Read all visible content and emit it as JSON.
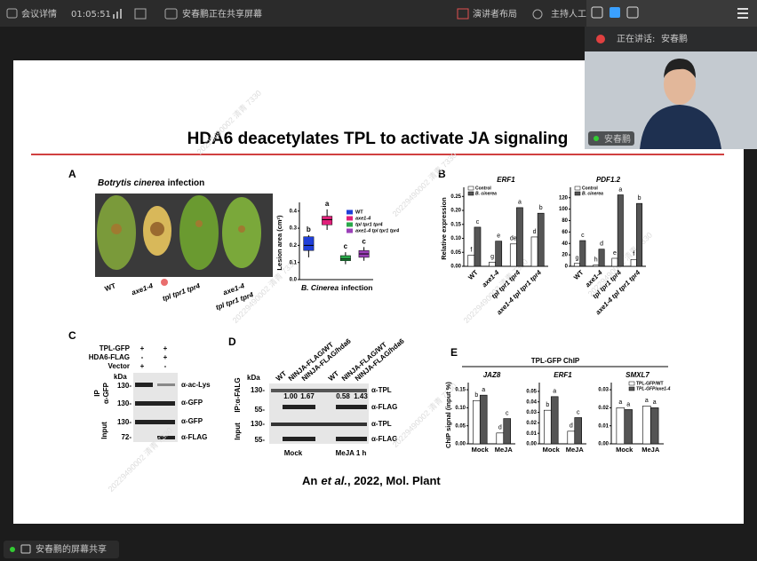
{
  "toolbar": {
    "meeting_info": "会议详情",
    "time": "01:05:51",
    "sharing": "安春鹏正在共享屏幕",
    "layout": "演讲者布局",
    "host": "主持人工"
  },
  "video": {
    "speaking_label": "正在讲话:",
    "speaker": "安春鹏",
    "name_tag": "安春鹏"
  },
  "footer": {
    "share_label": "安春鹏的屏幕共享"
  },
  "slide": {
    "title": "HDA6 deacetylates TPL to activate JA signaling",
    "watermark": "20229490002 清青 7330",
    "citation": [
      "An",
      "et al.",
      ", 2022, Mol. Plant"
    ],
    "A": {
      "label": "A",
      "caption": [
        "Botrytis cinerea",
        "infection"
      ],
      "leaf_labels": [
        "WT",
        "axe1-4",
        "tpl tpr1 tpr4",
        [
          "axe1-4",
          "tpl tpr1 tpr4"
        ]
      ]
    },
    "B": {
      "label": "B"
    },
    "C": {
      "label": "C",
      "rows": [
        "TPL-GFP",
        "HDA6-FLAG",
        "Vector"
      ],
      "signs": [
        [
          "+",
          "+"
        ],
        [
          "-",
          "+"
        ],
        [
          "+",
          "-"
        ]
      ],
      "kda": "kDa",
      "markers": [
        "130-",
        "130-",
        "130-",
        "72-"
      ],
      "antibodies": [
        "α-ac-Lys",
        "α-GFP",
        "α-GFP",
        "α-FLAG"
      ],
      "ip": "IP",
      "ip_ab": "α-GFP",
      "input": "Input"
    },
    "D": {
      "label": "D",
      "kda": "kDa",
      "lanes": [
        "WT",
        "NINJA-FLAG/WT",
        "NINJA-FLAG/hda6",
        "WT",
        "NINJA-FLAG/WT",
        "NINJA-FLAG/hda6"
      ],
      "ip": "IP:α-FALG",
      "input": "Input",
      "markers": [
        "130-",
        "55-",
        "130-",
        "55-"
      ],
      "antibodies": [
        "α-TPL",
        "α-FLAG",
        "α-TPL",
        "α-FLAG"
      ],
      "ratios": [
        "1.00",
        "1.67",
        "0.58",
        "1.43"
      ],
      "conditions": [
        "Mock",
        "MeJA 1 h"
      ]
    },
    "E": {
      "label": "E",
      "title": "TPL-GFP ChIP"
    }
  },
  "chart_data": [
    {
      "type": "box",
      "ylabel": "Lesion area (cm²)",
      "xlabel": [
        "B. Cinerea",
        "infection"
      ],
      "ylim": [
        0,
        0.43
      ],
      "yticks": [
        {
          "value": 0,
          "label": "0.0"
        },
        0.1,
        0.2,
        0.3,
        0.4
      ],
      "series": [
        {
          "name": "WT",
          "color": "#1f3fd8",
          "min": 0.13,
          "q1": 0.17,
          "median": 0.2,
          "q3": 0.25,
          "max": 0.26,
          "letter": "b"
        },
        {
          "name": "axe1-4",
          "color": "#e0207a",
          "min": 0.29,
          "q1": 0.32,
          "median": 0.35,
          "q3": 0.37,
          "max": 0.41,
          "letter": "a"
        },
        {
          "name": "tpl tpr1 tpr4",
          "color": "#2aa84a",
          "min": 0.09,
          "q1": 0.11,
          "median": 0.12,
          "q3": 0.14,
          "max": 0.16,
          "letter": "c"
        },
        {
          "name": "axe1-4 tpl tpr1 tpr4",
          "color": "#9b3fb8",
          "min": 0.11,
          "q1": 0.13,
          "median": 0.15,
          "q3": 0.17,
          "max": 0.19,
          "letter": "c"
        }
      ]
    },
    {
      "type": "bar",
      "title": "ERF1",
      "ylabel": "Relative expression",
      "legend": "upper-left",
      "categories": [
        "WT",
        "axe1-4",
        "tpl tpr1 tpr4",
        "axe1-4 tpl tpr1 tpr4"
      ],
      "ylim": [
        0,
        0.27
      ],
      "yticks": [
        {
          "value": 0,
          "label": "0.00"
        },
        0.05,
        {
          "value": 0.1,
          "label": "0.10"
        },
        0.15,
        {
          "value": 0.2,
          "label": "0.20"
        },
        0.25
      ],
      "series": [
        {
          "name": "Control",
          "color": "#ffffff",
          "values": [
            0.04,
            0.015,
            0.08,
            0.105
          ],
          "letters": [
            "f",
            "g",
            "de",
            "d"
          ]
        },
        {
          "name": "B. cinerea",
          "color": "#555555",
          "values": [
            0.14,
            0.09,
            0.21,
            0.19
          ],
          "letters": [
            "c",
            "e",
            "a",
            "b"
          ]
        }
      ]
    },
    {
      "type": "bar",
      "title": "PDF1.2",
      "legend": "upper-left",
      "categories": [
        "WT",
        "axe1-4",
        "tpl tpr1 tpr4",
        "axe1-4 tpl tpr1 tpr4"
      ],
      "ylim": [
        0,
        132
      ],
      "yticks": [
        0,
        20,
        40,
        60,
        80,
        100,
        120
      ],
      "series": [
        {
          "name": "Control",
          "color": "#ffffff",
          "values": [
            5,
            2,
            14,
            12
          ],
          "letters": [
            "g",
            "h",
            "e",
            "f"
          ]
        },
        {
          "name": "B. cinerea",
          "color": "#555555",
          "values": [
            45,
            30,
            125,
            110
          ],
          "letters": [
            "c",
            "d",
            "a",
            "b"
          ]
        }
      ]
    },
    {
      "type": "bar",
      "title": "JAZ8",
      "ylabel": "ChIP signal (input %)",
      "categories": [
        "Mock",
        "MeJA"
      ],
      "ylim": [
        0,
        0.16
      ],
      "yticks": [
        {
          "value": 0,
          "label": "0.00"
        },
        0.05,
        {
          "value": 0.1,
          "label": "0.10"
        },
        0.15
      ],
      "series": [
        {
          "color": "#ffffff",
          "values": [
            0.12,
            0.03
          ],
          "letters": [
            "b",
            "d"
          ]
        },
        {
          "color": "#555555",
          "values": [
            0.135,
            0.07
          ],
          "letters": [
            "a",
            "c"
          ]
        }
      ]
    },
    {
      "type": "bar",
      "title": "ERF1",
      "categories": [
        "Mock",
        "MeJA"
      ],
      "ylim": [
        0,
        0.055
      ],
      "yticks": [
        {
          "value": 0,
          "label": "0.00"
        },
        0.01,
        0.02,
        0.03,
        0.04,
        0.05
      ],
      "series": [
        {
          "color": "#ffffff",
          "values": [
            0.032,
            0.012
          ],
          "letters": [
            "b",
            "d"
          ]
        },
        {
          "color": "#555555",
          "values": [
            0.045,
            0.025
          ],
          "letters": [
            "a",
            "c"
          ]
        }
      ]
    },
    {
      "type": "bar",
      "title": "SMXL7",
      "legend": "upper-right",
      "categories": [
        "Mock",
        "MeJA"
      ],
      "ylim": [
        0,
        0.032
      ],
      "yticks": [
        {
          "value": 0,
          "label": "0.00"
        },
        0.01,
        0.02,
        0.03
      ],
      "series": [
        {
          "name": "TPL-GFP/WT",
          "color": "#ffffff",
          "values": [
            0.02,
            0.021
          ],
          "letters": [
            "a",
            "a"
          ]
        },
        {
          "name": "TPL-GFP/axe1-4",
          "color": "#555555",
          "values": [
            0.019,
            0.02
          ],
          "letters": [
            "a",
            "a"
          ]
        }
      ]
    }
  ]
}
